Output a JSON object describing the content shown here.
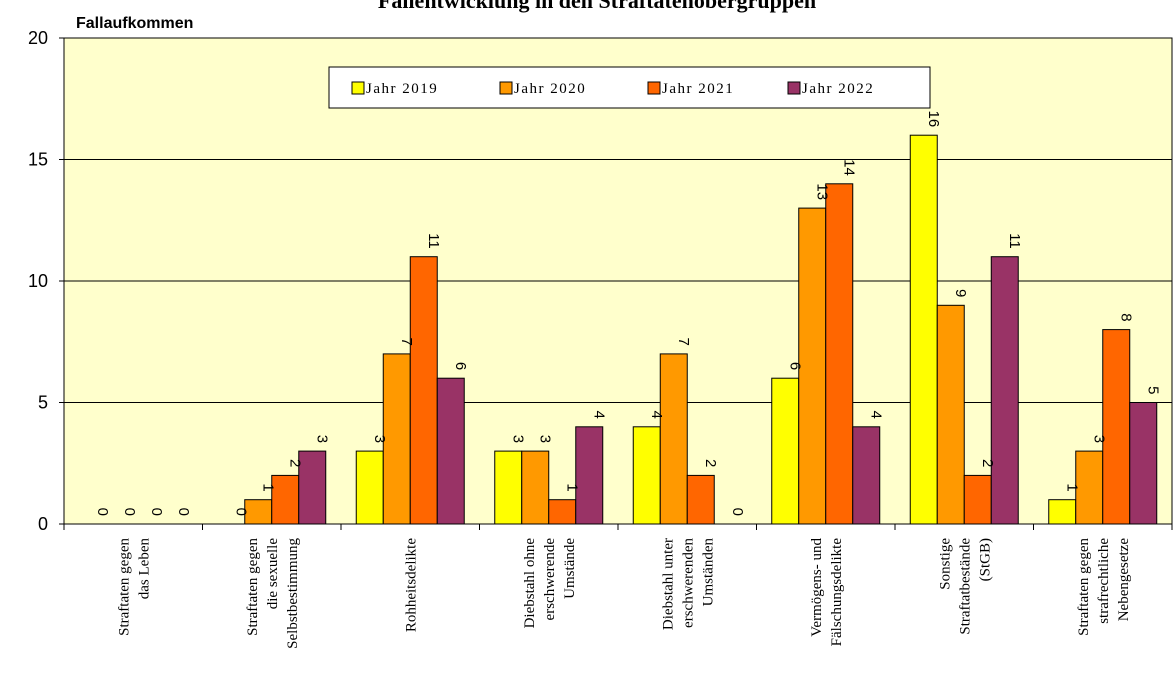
{
  "chart_data": {
    "type": "bar",
    "title": "Fallentwicklung in den Straftatenobergruppen",
    "ylabel": "Fallaufkommen",
    "ylim": [
      0,
      20
    ],
    "yticks": [
      "0",
      "5",
      "10",
      "15",
      "20"
    ],
    "grid": true,
    "legend_position": "top",
    "categories": [
      [
        "Straftaten gegen",
        "das Leben"
      ],
      [
        "Straftaten gegen",
        "die sexuelle",
        "Selbstbestimmung"
      ],
      [
        "Rohheitsdelikte"
      ],
      [
        "Diebstahl ohne",
        "erschwerende",
        "Umstände"
      ],
      [
        "Diebstahl unter",
        "erschwerenden",
        "Umständen"
      ],
      [
        "Vermögens- und",
        "Fälschungsdelikte"
      ],
      [
        "Sonstige",
        "Straftatbestände",
        "(StGB)"
      ],
      [
        "Straftaten gegen",
        "strafrechtliche",
        "Nebengesetze"
      ]
    ],
    "series": [
      {
        "name": "Jahr 2019",
        "color": "#ffff00",
        "values": [
          0,
          0,
          3,
          3,
          4,
          6,
          16,
          1
        ]
      },
      {
        "name": "Jahr 2020",
        "color": "#ff9900",
        "values": [
          0,
          1,
          7,
          3,
          7,
          13,
          9,
          3
        ]
      },
      {
        "name": "Jahr 2021",
        "color": "#ff6600",
        "values": [
          0,
          2,
          11,
          1,
          2,
          14,
          2,
          8
        ]
      },
      {
        "name": "Jahr 2022",
        "color": "#993366",
        "values": [
          0,
          3,
          6,
          4,
          0,
          4,
          11,
          5
        ]
      }
    ],
    "plot_background": "#ffffcc"
  }
}
